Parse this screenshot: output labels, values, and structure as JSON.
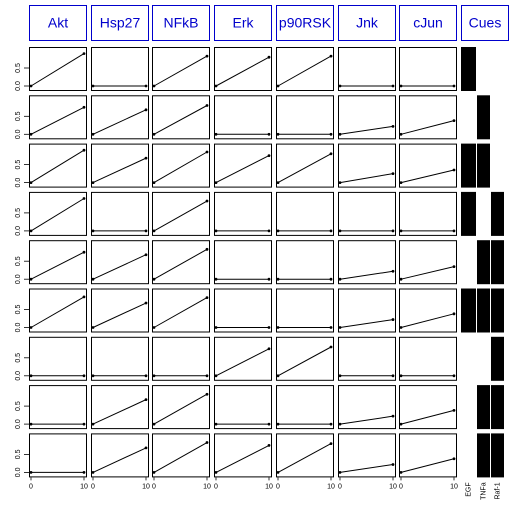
{
  "chart_data": {
    "type": "line",
    "column_headers": [
      "Akt",
      "Hsp27",
      "NFkB",
      "Erk",
      "p90RSK",
      "Jnk",
      "cJun",
      "Cues"
    ],
    "cue_names": [
      "EGF",
      "TNFa",
      "Raf-1"
    ],
    "y_ticks": [
      "0.0",
      "0.5"
    ],
    "x_ticks": [
      "0",
      "10"
    ],
    "xlim": [
      0,
      10
    ],
    "ylim": [
      0,
      1
    ],
    "header_border_color": "#0000cc",
    "rows": [
      {
        "values": [
          [
            0,
            0.9
          ],
          [
            0,
            0.0
          ],
          [
            0,
            0.83
          ],
          [
            0,
            0.8
          ],
          [
            0,
            0.83
          ],
          [
            0,
            0.0
          ],
          [
            0,
            0.0
          ]
        ],
        "cues": [
          1,
          0,
          0
        ]
      },
      {
        "values": [
          [
            0,
            0.75
          ],
          [
            0,
            0.68
          ],
          [
            0,
            0.8
          ],
          [
            0,
            0.0
          ],
          [
            0,
            0.0
          ],
          [
            0,
            0.22
          ],
          [
            0,
            0.38
          ]
        ],
        "cues": [
          0,
          1,
          0
        ]
      },
      {
        "values": [
          [
            0,
            0.9
          ],
          [
            0,
            0.68
          ],
          [
            0,
            0.85
          ],
          [
            0,
            0.75
          ],
          [
            0,
            0.8
          ],
          [
            0,
            0.25
          ],
          [
            0,
            0.35
          ]
        ],
        "cues": [
          1,
          1,
          0
        ]
      },
      {
        "values": [
          [
            0,
            0.9
          ],
          [
            0,
            0.0
          ],
          [
            0,
            0.83
          ],
          [
            0,
            0.0
          ],
          [
            0,
            0.0
          ],
          [
            0,
            0.0
          ],
          [
            0,
            0.0
          ]
        ],
        "cues": [
          1,
          0,
          1
        ]
      },
      {
        "values": [
          [
            0,
            0.75
          ],
          [
            0,
            0.68
          ],
          [
            0,
            0.83
          ],
          [
            0,
            0.0
          ],
          [
            0,
            0.0
          ],
          [
            0,
            0.22
          ],
          [
            0,
            0.35
          ]
        ],
        "cues": [
          0,
          1,
          1
        ]
      },
      {
        "values": [
          [
            0,
            0.85
          ],
          [
            0,
            0.68
          ],
          [
            0,
            0.83
          ],
          [
            0,
            0.0
          ],
          [
            0,
            0.0
          ],
          [
            0,
            0.22
          ],
          [
            0,
            0.38
          ]
        ],
        "cues": [
          1,
          1,
          1
        ]
      },
      {
        "values": [
          [
            0,
            0.0
          ],
          [
            0,
            0.0
          ],
          [
            0,
            0.0
          ],
          [
            0,
            0.75
          ],
          [
            0,
            0.8
          ],
          [
            0,
            0.0
          ],
          [
            0,
            0.0
          ]
        ],
        "cues": [
          0,
          0,
          1
        ]
      },
      {
        "values": [
          [
            0,
            0.0
          ],
          [
            0,
            0.68
          ],
          [
            0,
            0.83
          ],
          [
            0,
            0.0
          ],
          [
            0,
            0.0
          ],
          [
            0,
            0.22
          ],
          [
            0,
            0.38
          ]
        ],
        "cues": [
          0,
          1,
          1
        ]
      },
      {
        "values": [
          [
            0,
            0.0
          ],
          [
            0,
            0.68
          ],
          [
            0,
            0.83
          ],
          [
            0,
            0.75
          ],
          [
            0,
            0.8
          ],
          [
            0,
            0.22
          ],
          [
            0,
            0.38
          ]
        ],
        "cues": [
          0,
          1,
          1
        ]
      }
    ]
  }
}
